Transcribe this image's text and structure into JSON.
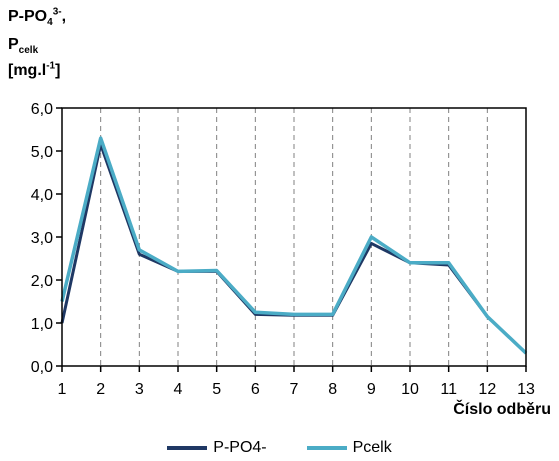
{
  "chart_data": {
    "type": "line",
    "ylabel": {
      "line1": {
        "base": "P-PO",
        "sub": "4",
        "sup": "3-",
        "tail": ","
      },
      "line2": {
        "base": "P",
        "sub": "celk"
      },
      "line3": {
        "base": "[mg.l",
        "sup": "-1",
        "tail": "]"
      }
    },
    "xlabel": "Číslo odběru",
    "x": [
      1,
      2,
      3,
      4,
      5,
      6,
      7,
      8,
      9,
      10,
      11,
      12,
      13
    ],
    "x_tick_labels": [
      "1",
      "2",
      "3",
      "4",
      "5",
      "6",
      "7",
      "8",
      "9",
      "10",
      "11",
      "12",
      "13"
    ],
    "y_tick_labels": [
      "0,0",
      "1,0",
      "2,0",
      "3,0",
      "4,0",
      "5,0",
      "6,0"
    ],
    "ylim": [
      0,
      6
    ],
    "y_ticks": [
      0,
      1,
      2,
      3,
      4,
      5,
      6
    ],
    "grid": "vertical dashed",
    "legend": "bottom",
    "series": [
      {
        "name": "P-PO4-",
        "color": "#1f3864",
        "values": [
          1.0,
          5.15,
          2.6,
          2.2,
          2.2,
          1.2,
          1.18,
          1.18,
          2.85,
          2.4,
          2.35,
          1.15,
          0.3
        ]
      },
      {
        "name": "Pcelk",
        "color": "#4bacc6",
        "values": [
          1.5,
          5.3,
          2.7,
          2.2,
          2.22,
          1.25,
          1.2,
          1.2,
          3.0,
          2.4,
          2.4,
          1.15,
          0.3
        ]
      }
    ]
  }
}
